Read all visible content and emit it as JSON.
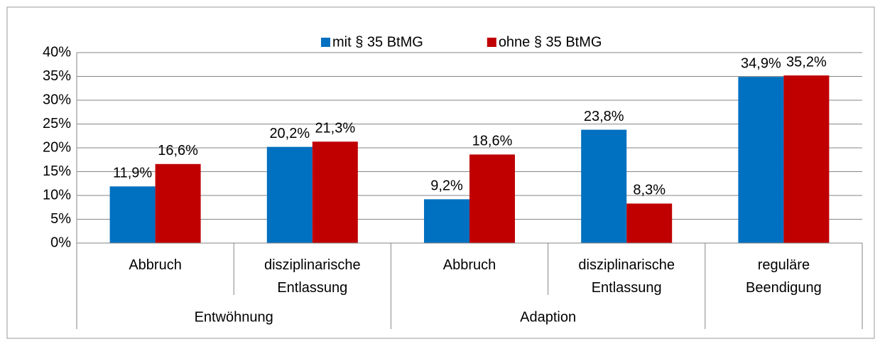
{
  "chart_data": {
    "type": "bar",
    "categories": [
      "Abbruch",
      "disziplinarische Entlassung",
      "Abbruch",
      "disziplinarische Entlassung",
      "reguläre Beendigung"
    ],
    "groups": [
      "Entwöhnung",
      "Entwöhnung",
      "Adaption",
      "Adaption",
      null
    ],
    "series": [
      {
        "name": "mit § 35 BtMG",
        "color": "#0070c0",
        "values": [
          11.9,
          20.2,
          9.2,
          23.8,
          34.9
        ],
        "value_labels": [
          "11,9%",
          "20,2%",
          "9,2%",
          "23,8%",
          "34,9%"
        ]
      },
      {
        "name": "ohne § 35 BtMG",
        "color": "#c00000",
        "values": [
          16.6,
          21.3,
          18.6,
          8.3,
          35.2
        ],
        "value_labels": [
          "16,6%",
          "21,3%",
          "18,6%",
          "8,3%",
          "35,2%"
        ]
      }
    ],
    "ylim": [
      0,
      40
    ],
    "yticks": [
      {
        "value": 0,
        "label": "0%"
      },
      {
        "value": 5,
        "label": "5%"
      },
      {
        "value": 10,
        "label": "10%"
      },
      {
        "value": 15,
        "label": "15%"
      },
      {
        "value": 20,
        "label": "20%"
      },
      {
        "value": 25,
        "label": "25%"
      },
      {
        "value": 30,
        "label": "30%"
      },
      {
        "value": 35,
        "label": "35%"
      },
      {
        "value": 40,
        "label": "40%"
      }
    ],
    "grid": true,
    "legend": "top"
  }
}
